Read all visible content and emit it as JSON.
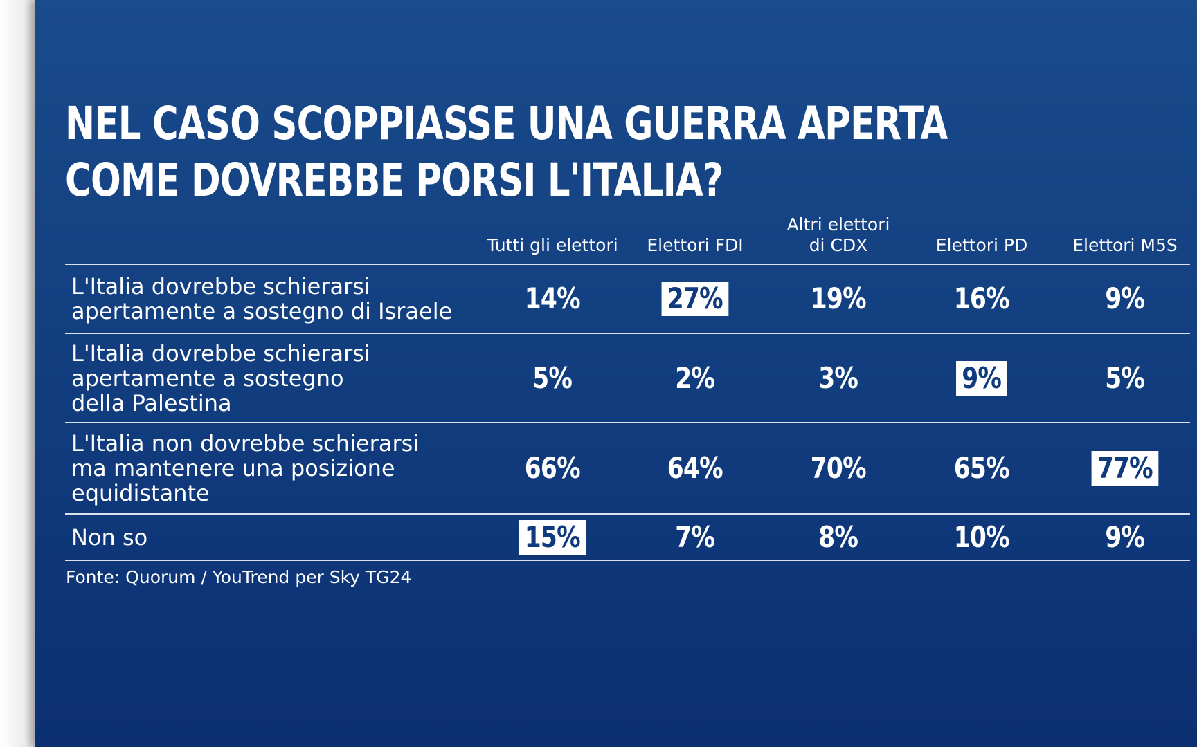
{
  "chart_data": {
    "type": "table",
    "title_lines": [
      "NEL CASO SCOPPIASSE UNA GUERRA APERTA",
      "COME DOVREBBE PORSI L'ITALIA?"
    ],
    "columns": [
      "Tutti gli elettori",
      "Elettori FDI",
      "Altri elettori\ndi CDX",
      "Elettori PD",
      "Elettori M5S"
    ],
    "rows": [
      {
        "label": "L'Italia dovrebbe schierarsi\napertamente a sostegno di Israele",
        "values": [
          "14%",
          "27%",
          "19%",
          "16%",
          "9%"
        ],
        "highlight": 1
      },
      {
        "label": "L'Italia dovrebbe schierarsi\napertamente a sostegno\ndella Palestina",
        "values": [
          "5%",
          "2%",
          "3%",
          "9%",
          "5%"
        ],
        "highlight": 3
      },
      {
        "label": "L'Italia non dovrebbe schierarsi\nma mantenere una posizione\nequidistante",
        "values": [
          "66%",
          "64%",
          "70%",
          "65%",
          "77%"
        ],
        "highlight": 4
      },
      {
        "label": "Non so",
        "values": [
          "15%",
          "7%",
          "8%",
          "10%",
          "9%"
        ],
        "highlight": 0
      }
    ],
    "source": "Fonte: Quorum / YouTrend per Sky TG24",
    "colors": {
      "background_top": "#1a4b8c",
      "background_bottom": "#0b2f72",
      "text": "#ffffff",
      "highlight_fill": "#ffffff",
      "highlight_text": "#0f3a7d"
    }
  }
}
